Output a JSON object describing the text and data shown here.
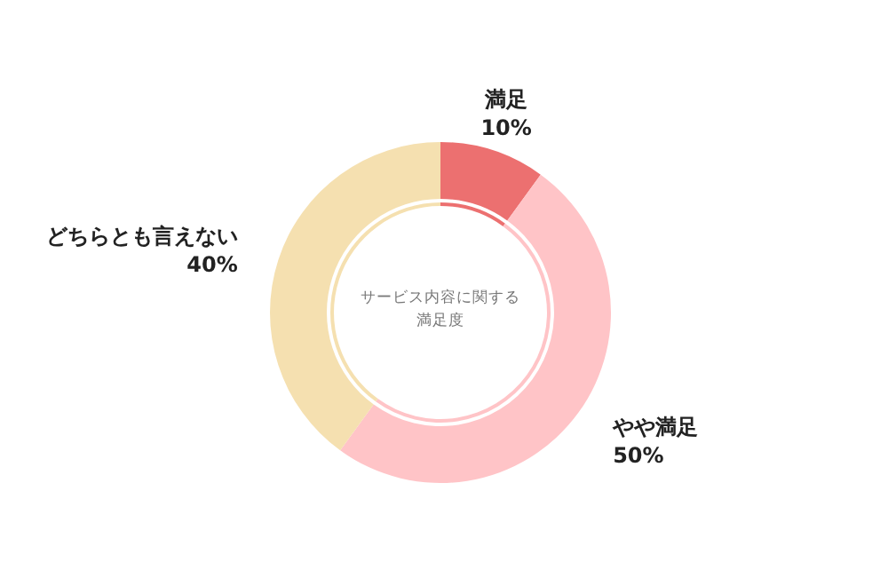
{
  "chart_data": {
    "type": "donut",
    "title": "サービス内容に関する満足度",
    "categories": [
      "満足",
      "やや満足",
      "どちらとも言えない"
    ],
    "series": [
      {
        "values": [
          10,
          50,
          40
        ],
        "value_labels": [
          "10%",
          "50%",
          "40%"
        ]
      },
      {
        "values": [
          10,
          50,
          40
        ]
      }
    ],
    "colors": [
      "#ec7070",
      "#ffc4c7",
      "#f5e0b0"
    ],
    "legend": false
  }
}
